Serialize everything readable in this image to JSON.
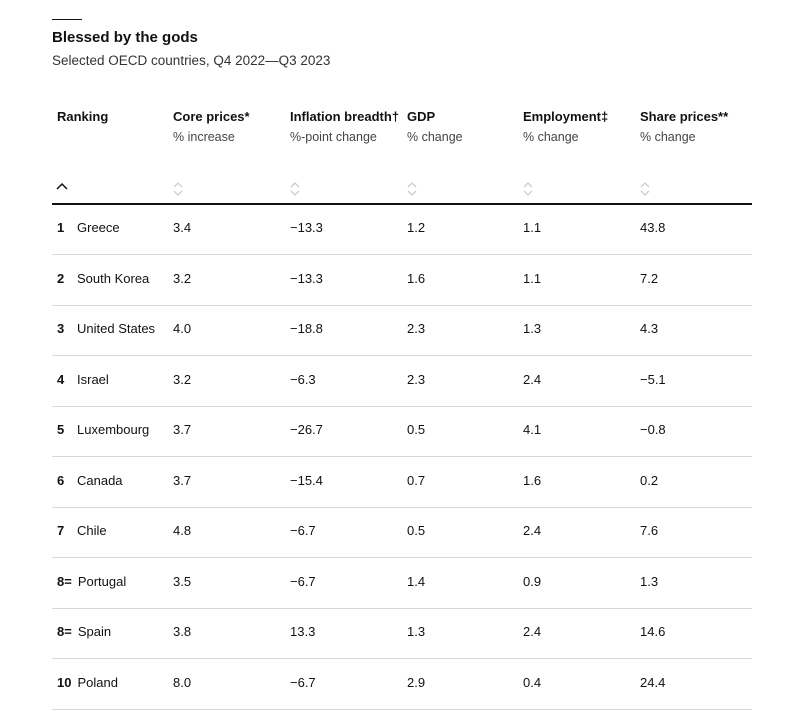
{
  "header": {
    "title": "Blessed by the gods",
    "subtitle": "Selected OECD countries, Q4 2022—Q3 2023"
  },
  "table": {
    "columns": [
      {
        "name": "Ranking"
      },
      {
        "name": "Core prices*",
        "unit": "% increase"
      },
      {
        "name": "Inflation breadth†",
        "unit": "%-point change"
      },
      {
        "name": "GDP",
        "unit": "% change"
      },
      {
        "name": "Employment‡",
        "unit": "% change"
      },
      {
        "name": "Share prices**",
        "unit": "% change"
      }
    ],
    "rows": [
      [
        "1",
        "Greece",
        "3.4",
        "−13.3",
        "1.2",
        "1.1",
        "43.8"
      ],
      [
        "2",
        "South Korea",
        "3.2",
        "−13.3",
        "1.6",
        "1.1",
        "7.2"
      ],
      [
        "3",
        "United States",
        "4.0",
        "−18.8",
        "2.3",
        "1.3",
        "4.3"
      ],
      [
        "4",
        "Israel",
        "3.2",
        "−6.3",
        "2.3",
        "2.4",
        "−5.1"
      ],
      [
        "5",
        "Luxembourg",
        "3.7",
        "−26.7",
        "0.5",
        "4.1",
        "−0.8"
      ],
      [
        "6",
        "Canada",
        "3.7",
        "−15.4",
        "0.7",
        "1.6",
        "0.2"
      ],
      [
        "7",
        "Chile",
        "4.8",
        "−6.7",
        "0.5",
        "2.4",
        "7.6"
      ],
      [
        "8=",
        "Portugal",
        "3.5",
        "−6.7",
        "1.4",
        "0.9",
        "1.3"
      ],
      [
        "8=",
        "Spain",
        "3.8",
        "13.3",
        "1.3",
        "2.4",
        "14.6"
      ],
      [
        "10",
        "Poland",
        "8.0",
        "−6.7",
        "2.9",
        "0.4",
        "24.4"
      ]
    ]
  }
}
